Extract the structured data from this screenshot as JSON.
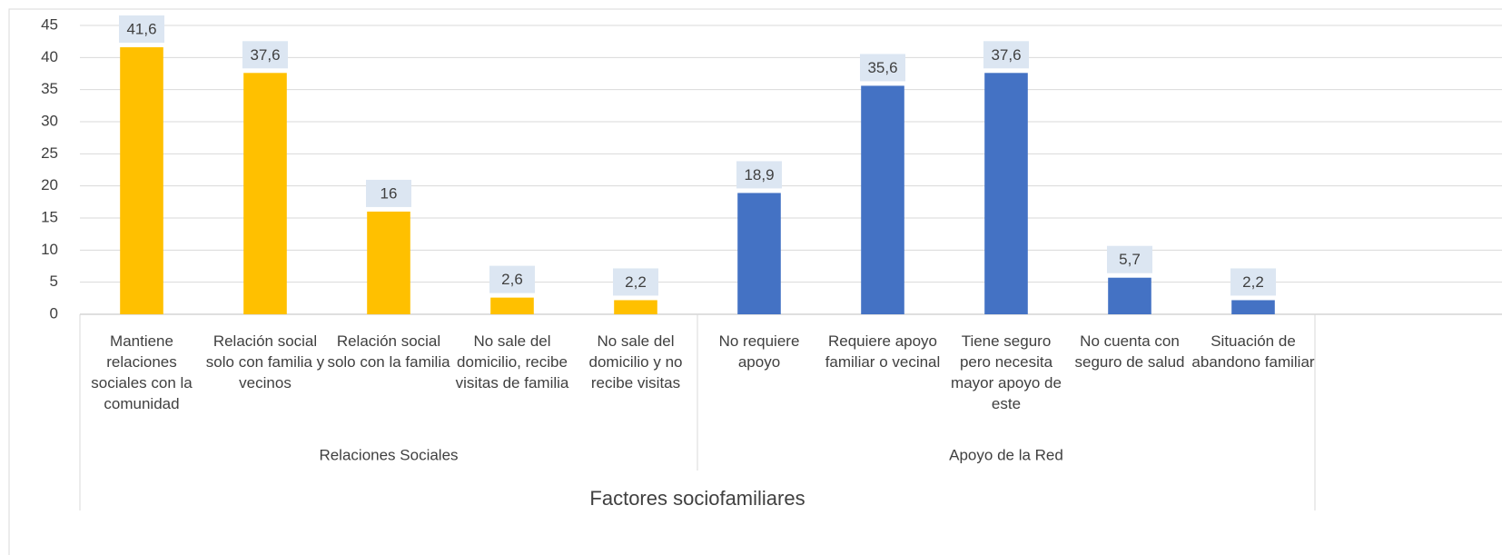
{
  "chart_data": {
    "type": "bar",
    "x_label": "Factores sociofamiliares",
    "groups": [
      {
        "name": "Relaciones Sociales",
        "color": "#ffc000",
        "categories": [
          "Mantiene relaciones sociales con la comunidad",
          "Relación social solo con familia y vecinos",
          "Relación social solo con la familia",
          "No sale del domicilio, recibe visitas de familia",
          "No sale del domicilio y no recibe visitas"
        ],
        "values": [
          41.6,
          37.6,
          16,
          2.6,
          2.2
        ],
        "value_labels": [
          "41,6",
          "37,6",
          "16",
          "2,6",
          "2,2"
        ]
      },
      {
        "name": "Apoyo de la Red",
        "color": "#4472c4",
        "categories": [
          "No requiere apoyo",
          "Requiere apoyo familiar o vecinal",
          "Tiene seguro pero necesita mayor apoyo de este",
          "No cuenta con seguro de salud",
          "Situación de abandono familiar"
        ],
        "values": [
          18.9,
          35.6,
          37.6,
          5.7,
          2.2
        ],
        "value_labels": [
          "18,9",
          "35,6",
          "37,6",
          "5,7",
          "2,2"
        ]
      }
    ],
    "ylim": [
      0,
      45
    ],
    "yticks": [
      0,
      5,
      10,
      15,
      20,
      25,
      30,
      35,
      40,
      45
    ],
    "grid": true
  }
}
